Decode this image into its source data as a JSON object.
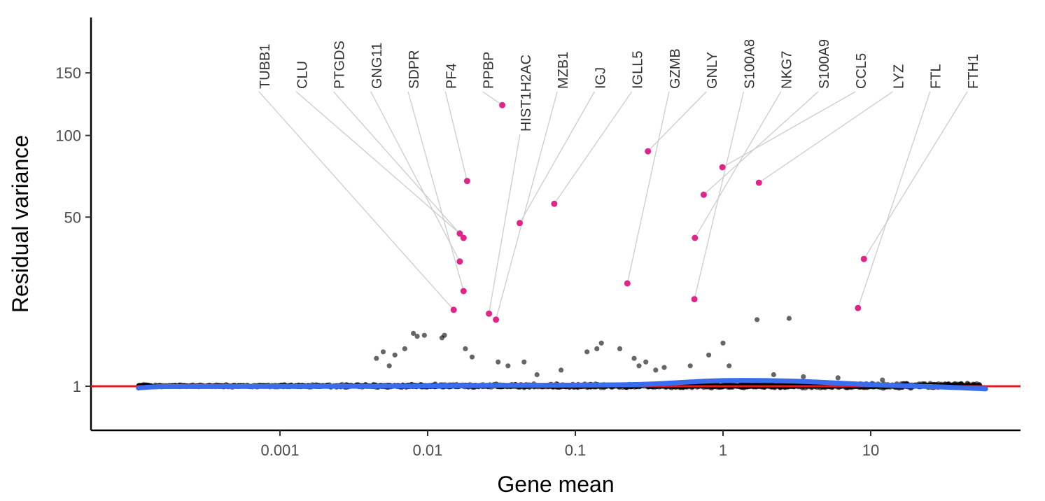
{
  "chart_data": {
    "type": "scatter",
    "title": "",
    "xlabel": "Gene mean",
    "ylabel": "Residual variance",
    "x_scale": "log10",
    "y_scale": "sqrt",
    "xlim": [
      5e-05,
      150
    ],
    "ylim": [
      0.15,
      250
    ],
    "x_ticks": [
      0.001,
      0.01,
      0.1,
      1,
      10
    ],
    "x_tick_labels": [
      "0.001",
      "0.01",
      "0.1",
      "1",
      "10"
    ],
    "y_ticks": [
      1,
      50,
      100,
      150
    ],
    "y_tick_labels": [
      "1",
      "50",
      "100",
      "150"
    ],
    "grid": false,
    "legend": "none",
    "reference_line": {
      "y": 1,
      "color": "#e8181f"
    },
    "trend_line": {
      "color": "#3a6cf0",
      "points": [
        [
          0.00011,
          0.88
        ],
        [
          0.00015,
          0.97
        ],
        [
          0.0003,
          0.98
        ],
        [
          0.001,
          0.99
        ],
        [
          0.003,
          1.0
        ],
        [
          0.01,
          1.02
        ],
        [
          0.03,
          1.06
        ],
        [
          0.1,
          1.08
        ],
        [
          0.3,
          1.15
        ],
        [
          1,
          1.45
        ],
        [
          3,
          1.4
        ],
        [
          10,
          1.12
        ],
        [
          30,
          0.95
        ],
        [
          60,
          0.82
        ]
      ]
    },
    "highlighted_genes": [
      {
        "label": "TUBB1",
        "x": 0.015,
        "y": 14.0
      },
      {
        "label": "CLU",
        "x": 0.0165,
        "y": 42.0
      },
      {
        "label": "PTGDS",
        "x": 0.0175,
        "y": 40.0
      },
      {
        "label": "GNG11",
        "x": 0.0165,
        "y": 30.0
      },
      {
        "label": "SDPR",
        "x": 0.0175,
        "y": 19.5
      },
      {
        "label": "PF4",
        "x": 0.0185,
        "y": 70.0
      },
      {
        "label": "PPBP",
        "x": 0.032,
        "y": 123.0
      },
      {
        "label": "HIST1H2AC",
        "x": 0.026,
        "y": 13.0
      },
      {
        "label": "MZB1",
        "x": 0.029,
        "y": 11.5
      },
      {
        "label": "IGJ",
        "x": 0.042,
        "y": 47.0
      },
      {
        "label": "IGLL5",
        "x": 0.072,
        "y": 57.0
      },
      {
        "label": "GZMB",
        "x": 0.225,
        "y": 22.0
      },
      {
        "label": "GNLY",
        "x": 0.31,
        "y": 89.0
      },
      {
        "label": "S100A8",
        "x": 0.64,
        "y": 17.0
      },
      {
        "label": "NKG7",
        "x": 0.645,
        "y": 40.0
      },
      {
        "label": "S100A9",
        "x": 0.74,
        "y": 62.0
      },
      {
        "label": "CCL5",
        "x": 0.99,
        "y": 78.5
      },
      {
        "label": "LYZ",
        "x": 1.75,
        "y": 69.0
      },
      {
        "label": "FTL",
        "x": 8.2,
        "y": 14.5
      },
      {
        "label": "FTH1",
        "x": 9.0,
        "y": 31.0
      }
    ],
    "other_genes": {
      "color": "#000000",
      "description_points_sample": [
        [
          0.008,
          8.4
        ],
        [
          0.0085,
          7.8
        ],
        [
          0.0095,
          8.0
        ],
        [
          0.013,
          8.0
        ],
        [
          0.0125,
          7.5
        ],
        [
          0.005,
          5.0
        ],
        [
          0.0045,
          4.0
        ],
        [
          0.0055,
          3.0
        ],
        [
          0.006,
          4.5
        ],
        [
          0.007,
          5.5
        ],
        [
          0.018,
          5.5
        ],
        [
          0.02,
          4.2
        ],
        [
          0.03,
          3.5
        ],
        [
          0.035,
          3.0
        ],
        [
          0.045,
          3.5
        ],
        [
          0.055,
          2.0
        ],
        [
          0.08,
          2.5
        ],
        [
          0.12,
          5.0
        ],
        [
          0.15,
          6.5
        ],
        [
          0.14,
          5.5
        ],
        [
          0.2,
          5.5
        ],
        [
          0.25,
          4.0
        ],
        [
          0.27,
          3.0
        ],
        [
          0.3,
          3.5
        ],
        [
          0.35,
          2.5
        ],
        [
          0.4,
          2.8
        ],
        [
          0.6,
          3.0
        ],
        [
          0.8,
          4.5
        ],
        [
          1.0,
          6.5
        ],
        [
          1.1,
          3.0
        ],
        [
          1.7,
          11.5
        ],
        [
          2.8,
          11.8
        ],
        [
          2.2,
          2.0
        ],
        [
          3.5,
          1.8
        ],
        [
          6,
          1.7
        ],
        [
          12,
          1.5
        ]
      ]
    }
  }
}
